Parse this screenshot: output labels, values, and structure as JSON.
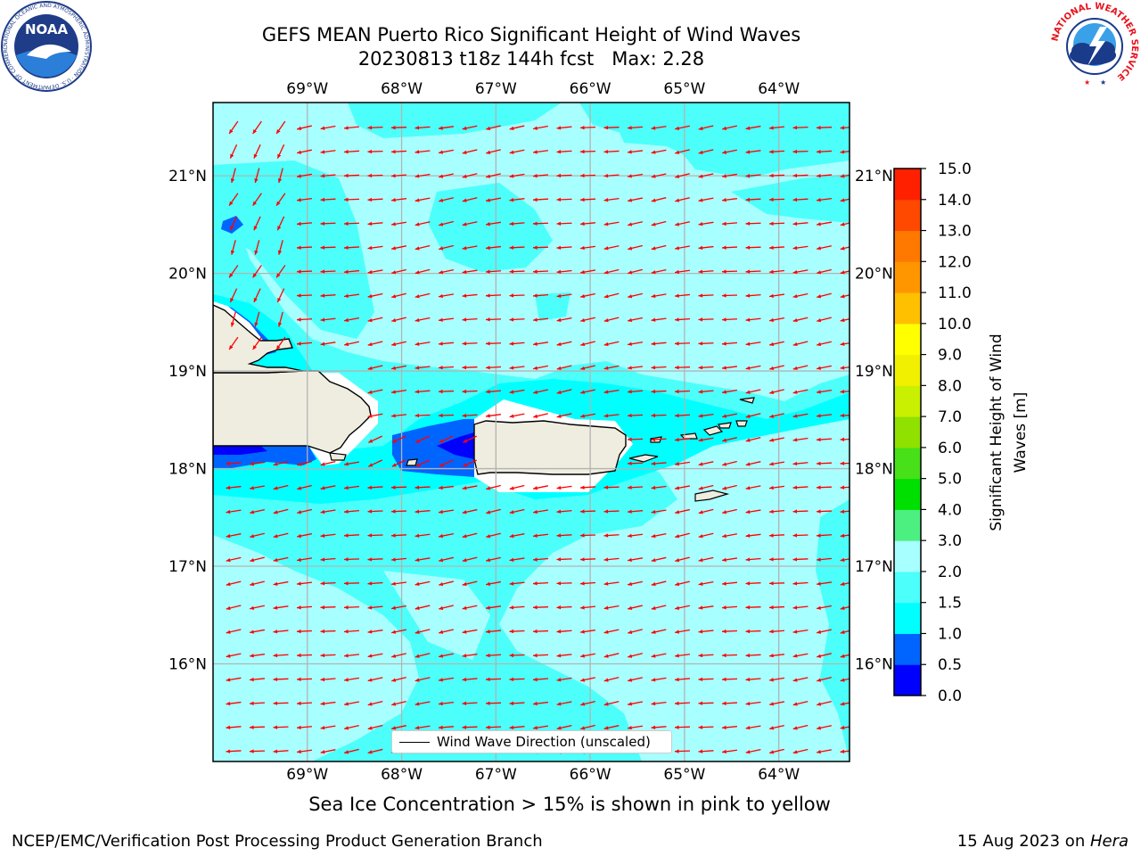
{
  "title": {
    "line1": "GEFS MEAN Puerto Rico Significant Height of Wind Waves",
    "line2": "20230813 t18z 144h fcst   Max: 2.28"
  },
  "map": {
    "lon_labels": [
      "69°W",
      "68°W",
      "67°W",
      "66°W",
      "65°W",
      "64°W"
    ],
    "lat_labels": [
      "21°N",
      "20°N",
      "19°N",
      "18°N",
      "17°N",
      "16°N"
    ],
    "lon_range": [
      -70.0,
      -63.25
    ],
    "lat_range": [
      15.0,
      21.75
    ],
    "lon_ticks": [
      -69,
      -68,
      -67,
      -66,
      -65,
      -64
    ],
    "lat_ticks": [
      21,
      20,
      19,
      18,
      17,
      16
    ],
    "arrow_color": "#ff0000",
    "land_color": "#efeddf",
    "nodata_color": "#ffffff",
    "legend_label": "Wind Wave Direction (unscaled)"
  },
  "colorbar": {
    "label": "Significant Height of Wind Waves [m]",
    "label_line1": "Significant Height of Wind",
    "label_line2": "Waves [m]",
    "ticks": [
      "0.0",
      "0.5",
      "1.0",
      "1.5",
      "2.0",
      "3.0",
      "4.0",
      "5.0",
      "6.0",
      "7.0",
      "8.0",
      "9.0",
      "10.0",
      "11.0",
      "12.0",
      "13.0",
      "14.0",
      "15.0"
    ],
    "colors": [
      "#0000ff",
      "#0064ff",
      "#00ffff",
      "#4cfffa",
      "#a8ffff",
      "#4cf080",
      "#00e000",
      "#48e018",
      "#90e000",
      "#c8f000",
      "#f0f000",
      "#ffff00",
      "#ffc000",
      "#ff9600",
      "#ff7800",
      "#ff4800",
      "#ff2000"
    ]
  },
  "field_colors": {
    "very_light": "#a8ffff",
    "light": "#4cfffa",
    "cyan": "#00ffff",
    "mid_blue": "#0064ff",
    "deep_blue": "#0000ff"
  },
  "caption": "Sea Ice Concentration > 15% is shown in pink to yellow",
  "footer": {
    "left": "NCEP/EMC/Verification Post Processing Product Generation Branch",
    "right_date": "15 Aug 2023 on ",
    "right_host": "Hera"
  },
  "logos": {
    "noaa_text": "NOAA",
    "noaa_ring": "NATIONAL OCEANIC AND ATMOSPHERIC ADMINISTRATION · U.S. DEPARTMENT OF COMMERCE",
    "nws_ring": "NATIONAL WEATHER SERVICE"
  }
}
